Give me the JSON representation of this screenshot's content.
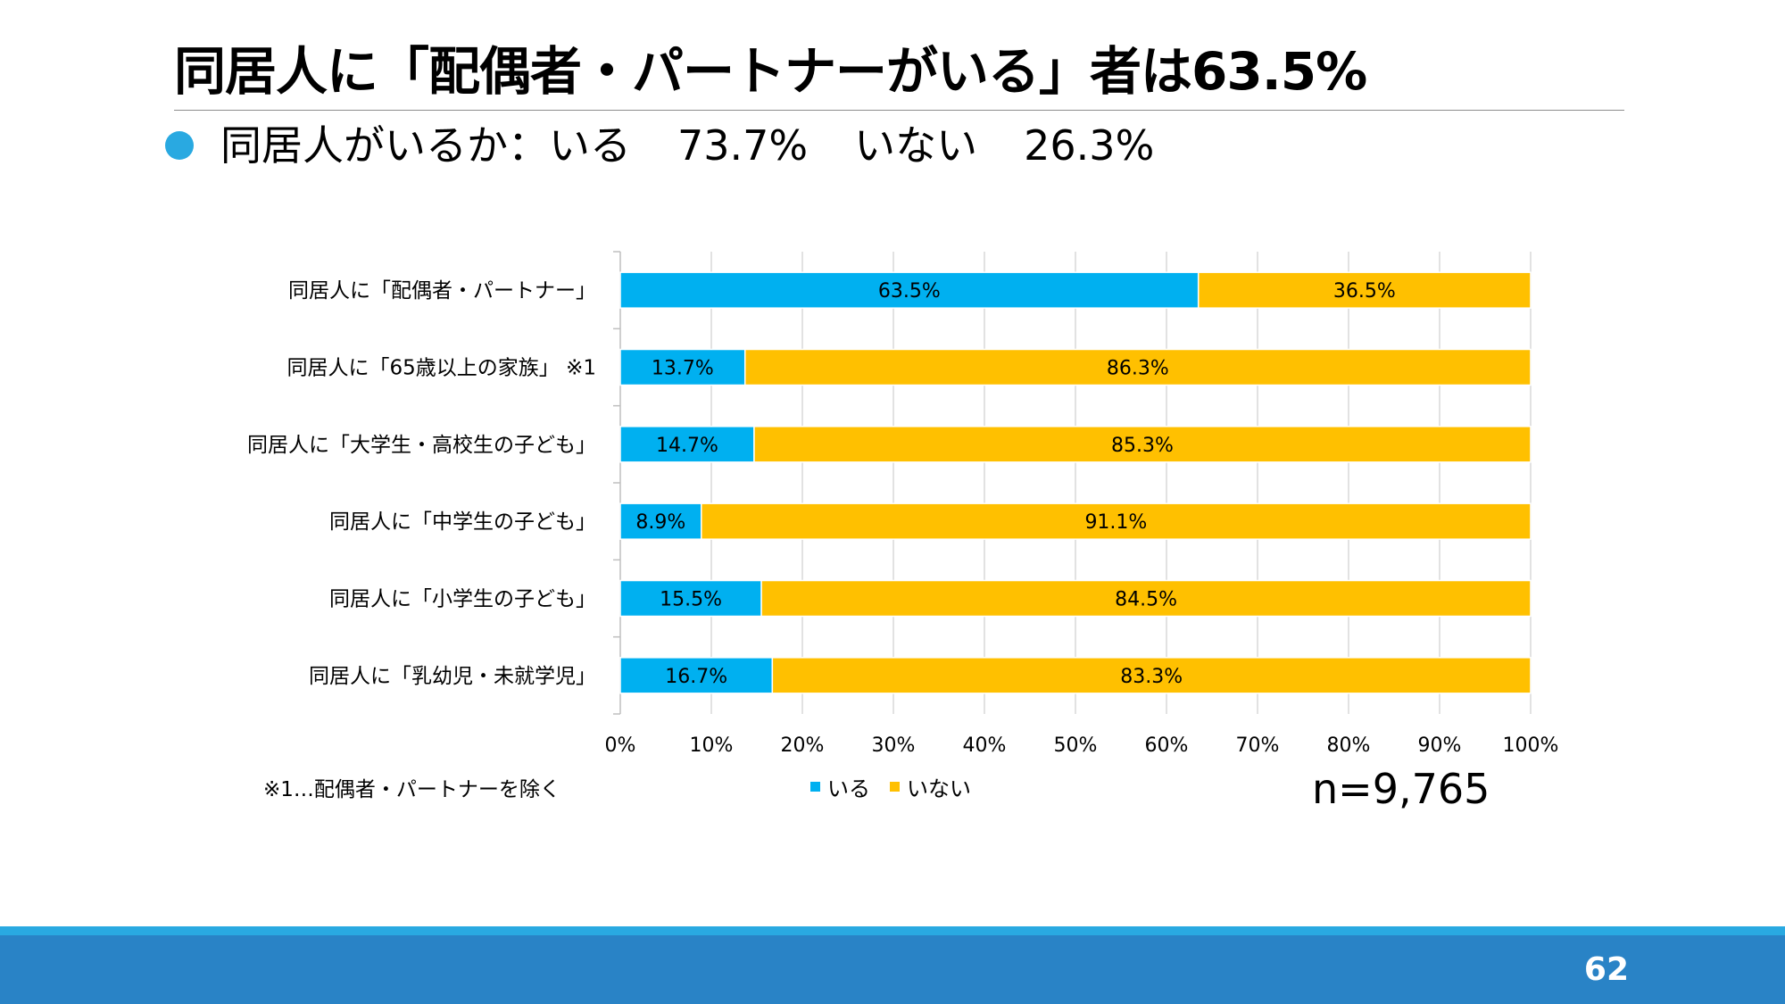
{
  "slide": {
    "title": "同居人に「配偶者・パートナーがいる」者は63.5%",
    "bullet": {
      "prefix": "同居人がいるか：いる",
      "yes_value": "73.7%",
      "no_label": "いない",
      "no_value": "26.3%"
    },
    "note": "※1…配偶者・パートナーを除く",
    "sample_size": "n=9,765",
    "page_number": "62"
  },
  "colors": {
    "accent_blue": "#00b0f0",
    "accent_yellow": "#ffc000",
    "bullet_blue": "#29a9e1",
    "footer_blue": "#2983c6",
    "footer_line": "#29a9e1"
  },
  "chart_data": {
    "type": "bar",
    "orientation": "horizontal",
    "stacked": "percent",
    "title": "",
    "categories": [
      "同居人に「配偶者・パートナー」",
      "同居人に「65歳以上の家族」 ※1",
      "同居人に「大学生・高校生の子ども」",
      "同居人に「中学生の子ども」",
      "同居人に「小学生の子ども」",
      "同居人に「乳幼児・未就学児」"
    ],
    "series": [
      {
        "name": "いる",
        "color": "#00b0f0",
        "values": [
          63.5,
          13.7,
          14.7,
          8.9,
          15.5,
          16.7
        ]
      },
      {
        "name": "いない",
        "color": "#ffc000",
        "values": [
          36.5,
          86.3,
          85.3,
          91.1,
          84.5,
          83.3
        ]
      }
    ],
    "data_labels": [
      [
        "63.5%",
        "13.7%",
        "14.7%",
        "8.9%",
        "15.5%",
        "16.7%"
      ],
      [
        "36.5%",
        "86.3%",
        "85.3%",
        "91.1%",
        "84.5%",
        "83.3%"
      ]
    ],
    "xlim": [
      0,
      100
    ],
    "x_ticks": [
      "0%",
      "10%",
      "20%",
      "30%",
      "40%",
      "50%",
      "60%",
      "70%",
      "80%",
      "90%",
      "100%"
    ],
    "grid": true,
    "legend_position": "bottom"
  }
}
